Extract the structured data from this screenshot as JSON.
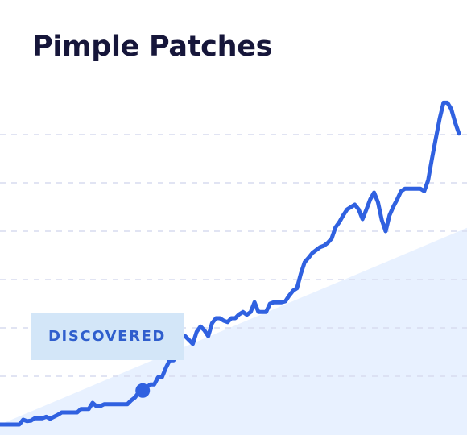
{
  "title": "Pimple Patches",
  "annotation": {
    "label": "DISCOVERED",
    "index": 37
  },
  "colors": {
    "line": "#3061e0",
    "title": "#16163a",
    "grid": "#d7dcef",
    "area": "#e4efff",
    "callout_bg": "#d3e6f8",
    "callout_text": "#2f5ecd"
  },
  "chart_data": {
    "type": "line",
    "title": "Pimple Patches",
    "xlabel": "",
    "ylabel": "",
    "ylim": [
      0,
      7
    ],
    "grid": true,
    "gridlines": [
      1,
      2,
      3,
      4,
      5,
      6
    ],
    "trend_area": {
      "start": 0.0,
      "end": 4.07
    },
    "series": [
      {
        "values": [
          0.0,
          0.0,
          0.0,
          0.0,
          0.0,
          0.0,
          0.1,
          0.07,
          0.08,
          0.13,
          0.13,
          0.13,
          0.16,
          0.12,
          0.16,
          0.2,
          0.25,
          0.25,
          0.25,
          0.25,
          0.25,
          0.32,
          0.32,
          0.32,
          0.45,
          0.38,
          0.38,
          0.42,
          0.42,
          0.42,
          0.42,
          0.42,
          0.42,
          0.42,
          0.5,
          0.56,
          0.67,
          0.77,
          0.77,
          0.83,
          0.83,
          0.98,
          0.98,
          1.17,
          1.33,
          1.33,
          1.58,
          1.83,
          1.83,
          1.75,
          1.67,
          1.92,
          2.03,
          1.95,
          1.83,
          2.1,
          2.2,
          2.2,
          2.15,
          2.12,
          2.2,
          2.2,
          2.28,
          2.33,
          2.27,
          2.33,
          2.53,
          2.33,
          2.33,
          2.33,
          2.5,
          2.53,
          2.53,
          2.53,
          2.55,
          2.67,
          2.77,
          2.82,
          3.12,
          3.36,
          3.45,
          3.55,
          3.61,
          3.67,
          3.7,
          3.76,
          3.85,
          4.08,
          4.19,
          4.33,
          4.45,
          4.5,
          4.55,
          4.45,
          4.25,
          4.45,
          4.66,
          4.8,
          4.6,
          4.23,
          4.0,
          4.33,
          4.51,
          4.66,
          4.83,
          4.88,
          4.88,
          4.88,
          4.88,
          4.88,
          4.83,
          5.05,
          5.5,
          5.92,
          6.33,
          6.66,
          6.66,
          6.53,
          6.25,
          6.02
        ]
      }
    ]
  }
}
